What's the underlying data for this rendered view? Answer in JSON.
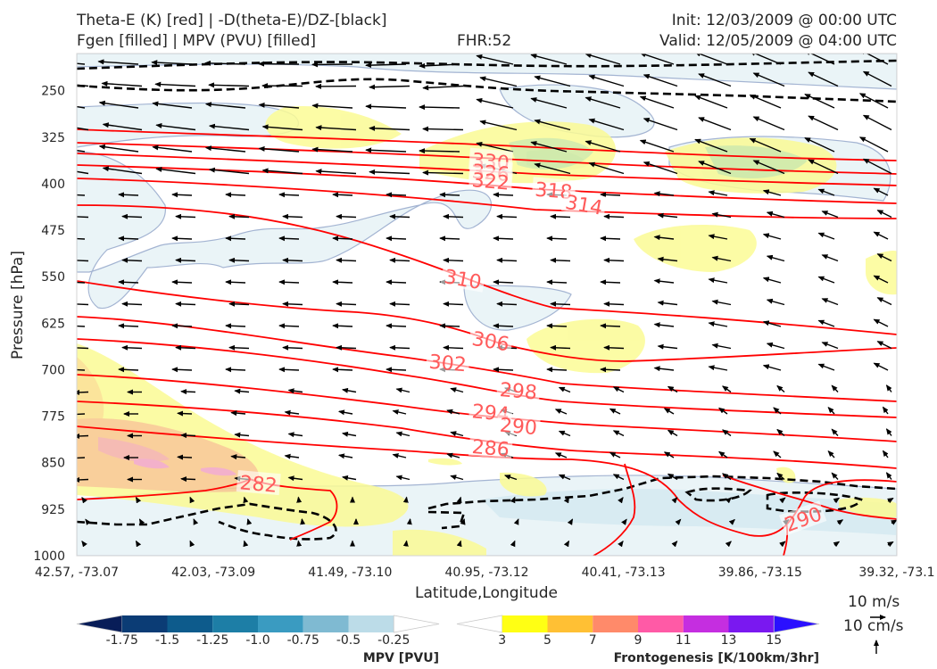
{
  "header": {
    "title_line1": "Theta-E (K) [red] | -D(theta-E)/DZ-[black]",
    "title_line2": "Fgen [filled] | MPV (PVU) [filled]",
    "fhr": "FHR:52",
    "init": "Init: 12/03/2009 @ 00:00 UTC",
    "valid": "Valid: 12/05/2009 @ 04:00 UTC"
  },
  "chart_data": {
    "type": "cross-section",
    "xlabel": "Latitude,Longitude",
    "ylabel": "Pressure [hPa]",
    "x_ticks": [
      "42.57, -73.07",
      "42.03, -73.09",
      "41.49, -73.10",
      "40.95, -73.12",
      "40.41, -73.13",
      "39.86, -73.15",
      "39.32, -73.1"
    ],
    "y_ticks": [
      250,
      325,
      400,
      475,
      550,
      625,
      700,
      775,
      850,
      925,
      1000
    ],
    "ylim": [
      1000,
      190
    ],
    "y_scale": "linear (inverted)",
    "theta_e_contours": [
      {
        "value": "330",
        "lat_label": 40.93,
        "p_label": 365
      },
      {
        "value": "326",
        "lat_label": 40.93,
        "p_label": 383
      },
      {
        "value": "322",
        "lat_label": 40.93,
        "p_label": 397
      },
      {
        "value": "318",
        "lat_label": 40.68,
        "p_label": 412
      },
      {
        "value": "314",
        "lat_label": 40.56,
        "p_label": 435
      },
      {
        "value": "310",
        "lat_label": 41.04,
        "p_label": 555
      },
      {
        "value": "306",
        "lat_label": 40.93,
        "p_label": 655
      },
      {
        "value": "302",
        "lat_label": 41.1,
        "p_label": 690
      },
      {
        "value": "298",
        "lat_label": 40.82,
        "p_label": 735
      },
      {
        "value": "294",
        "lat_label": 40.93,
        "p_label": 770
      },
      {
        "value": "290",
        "lat_label": 40.82,
        "p_label": 792
      },
      {
        "value": "286",
        "lat_label": 40.93,
        "p_label": 827
      },
      {
        "value": "282",
        "lat_label": 41.85,
        "p_label": 885
      },
      {
        "value": "290",
        "lat_label": 39.69,
        "p_label": 942
      }
    ],
    "wind_reference": {
      "horizontal": "10 m/s",
      "vertical": "10 cm/s"
    },
    "colorbars": [
      {
        "label": "MPV [PVU]",
        "ticks": [
          "-1.75",
          "-1.5",
          "-1.25",
          "-1.0",
          "-0.75",
          "-0.5",
          "-0.25"
        ],
        "colors": [
          "#081d58",
          "#0b3c75",
          "#0d5b8c",
          "#1d7ea6",
          "#3a9bc1",
          "#7fbad2",
          "#bcdce8",
          "#ffffff"
        ]
      },
      {
        "label": "Frontogenesis [K/100km/3hr]",
        "ticks": [
          "3",
          "5",
          "7",
          "9",
          "11",
          "13",
          "15"
        ],
        "colors": [
          "#ffffff",
          "#ffff14",
          "#ffc034",
          "#ff8a6a",
          "#ff5aa6",
          "#c52ee0",
          "#7a18f0",
          "#2b10ff"
        ]
      }
    ],
    "colors": {
      "theta_e": "#ff0000",
      "stability": "#000000",
      "contour_label": "#ff5a5a",
      "mpv_outline": "#9fb0d0"
    }
  }
}
